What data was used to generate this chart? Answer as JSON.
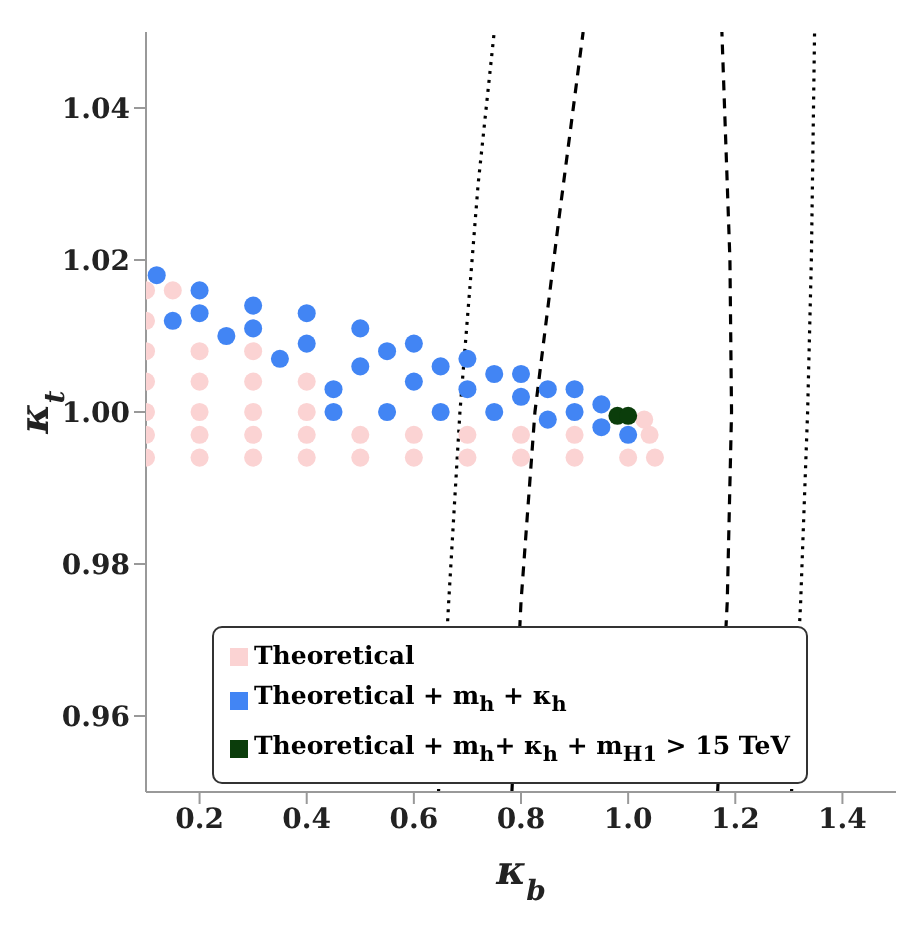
{
  "chart_data": {
    "type": "scatter",
    "xlabel": "κ$_{b}$",
    "ylabel": "κ$_{t}$",
    "xlim": [
      0.1,
      1.5
    ],
    "ylim": [
      0.95,
      1.05
    ],
    "xticks": [
      {
        "value": 0.2,
        "label": "0.2"
      },
      {
        "value": 0.4,
        "label": "0.4"
      },
      {
        "value": 0.6,
        "label": "0.6"
      },
      {
        "value": 0.8,
        "label": "0.8"
      },
      {
        "value": 1.0,
        "label": "1.0"
      },
      {
        "value": 1.2,
        "label": "1.2"
      },
      {
        "value": 1.4,
        "label": "1.4"
      }
    ],
    "yticks": [
      {
        "value": 0.96,
        "label": "0.96"
      },
      {
        "value": 0.98,
        "label": "0.98"
      },
      {
        "value": 1.0,
        "label": "1.00"
      },
      {
        "value": 1.02,
        "label": "1.02"
      },
      {
        "value": 1.04,
        "label": "1.04"
      }
    ],
    "grid": false,
    "legend": "bottom",
    "marker": "circle",
    "series": [
      {
        "name": "Theoretical",
        "color": "#fbd3d3",
        "x": [
          0.1,
          0.2,
          0.3,
          0.4,
          0.5,
          0.6,
          0.7,
          0.8,
          0.9,
          1.0,
          1.05,
          0.1,
          0.2,
          0.3,
          0.4,
          0.5,
          0.6,
          0.7,
          0.8,
          0.9,
          1.04,
          0.1,
          0.2,
          0.3,
          0.4,
          0.1,
          0.2,
          0.3,
          0.4,
          0.1,
          0.2,
          0.3,
          0.1,
          0.1,
          0.15,
          1.03
        ],
        "values": [
          0.994,
          0.994,
          0.994,
          0.994,
          0.994,
          0.994,
          0.994,
          0.994,
          0.994,
          0.994,
          0.994,
          0.997,
          0.997,
          0.997,
          0.997,
          0.997,
          0.997,
          0.997,
          0.997,
          0.997,
          0.997,
          1.0,
          1.0,
          1.0,
          1.0,
          1.004,
          1.004,
          1.004,
          1.004,
          1.008,
          1.008,
          1.008,
          1.012,
          1.016,
          1.016,
          0.999
        ]
      },
      {
        "name": "Theoretical + m$_{h}$ + κ$_{h}$",
        "color": "#4285f4",
        "x": [
          0.12,
          0.2,
          0.3,
          0.4,
          0.5,
          0.6,
          0.7,
          0.8,
          0.9,
          0.15,
          0.25,
          0.35,
          0.45,
          0.45,
          0.5,
          0.55,
          0.6,
          0.65,
          0.7,
          0.75,
          0.8,
          0.85,
          0.9,
          0.95,
          1.0,
          0.55,
          0.65,
          0.4,
          0.3,
          0.2,
          0.75,
          0.85,
          0.95
        ],
        "values": [
          1.018,
          1.016,
          1.014,
          1.013,
          1.011,
          1.009,
          1.007,
          1.005,
          1.003,
          1.012,
          1.01,
          1.007,
          1.003,
          1.0,
          1.006,
          1.0,
          1.004,
          1.0,
          1.003,
          1.0,
          1.002,
          0.999,
          1.0,
          0.998,
          0.997,
          1.008,
          1.006,
          1.009,
          1.011,
          1.013,
          1.005,
          1.003,
          1.001
        ]
      },
      {
        "name": "Theoretical + m$_{h}$+ κ$_{h}$ + m$_{H1}$ > 15 TeV",
        "color": "#0b3d0b",
        "x": [
          0.98,
          1.0
        ],
        "values": [
          0.9995,
          0.9995
        ]
      },
      {
        "type": "line",
        "color": "#000000",
        "line_style": "dotted",
        "marker": "none",
        "x": [
          0.646,
          0.665,
          0.686,
          0.72,
          0.75
        ],
        "values": [
          0.95,
          0.975,
          1.0,
          1.03,
          1.05
        ]
      },
      {
        "type": "line",
        "color": "#000000",
        "line_style": "dashed",
        "marker": "none",
        "x": [
          0.783,
          0.8,
          0.826,
          0.87,
          0.916
        ],
        "values": [
          0.95,
          0.975,
          1.0,
          1.025,
          1.05
        ]
      },
      {
        "type": "line",
        "color": "#000000",
        "line_style": "dashed",
        "marker": "none",
        "x": [
          1.167,
          1.185,
          1.193,
          1.19,
          1.175
        ],
        "values": [
          0.95,
          0.975,
          1.0,
          1.02,
          1.05
        ]
      },
      {
        "type": "line",
        "color": "#000000",
        "line_style": "dotted",
        "marker": "none",
        "x": [
          1.305,
          1.322,
          1.335,
          1.342,
          1.348
        ],
        "values": [
          0.95,
          0.975,
          1.0,
          1.02,
          1.05
        ]
      }
    ]
  }
}
